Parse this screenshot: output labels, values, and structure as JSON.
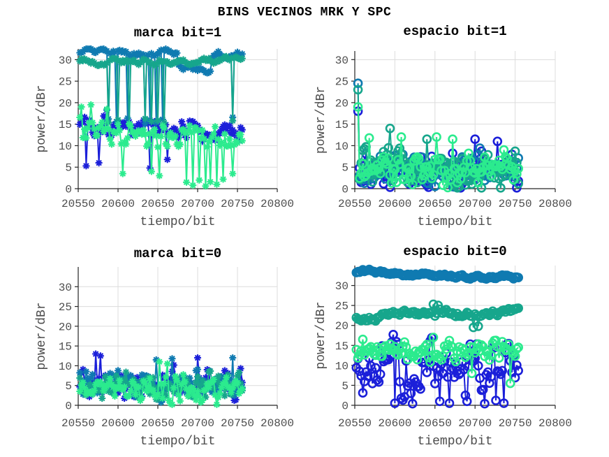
{
  "figure": {
    "title": "BINS VECINOS MRK Y SPC",
    "background": "#ffffff"
  },
  "style": {
    "axis_color": "#262626",
    "grid_color": "#dcdcdc",
    "tick_label_color": "#4d4d4d",
    "axis_label_color": "#4d4d4d",
    "title_color": "#000000"
  },
  "colors": {
    "blue": "#1b1fd9",
    "steel_blue": "#0f7ab1",
    "sea_green": "#16a68c",
    "spring_green": "#2beb8e"
  },
  "chart_data": [
    {
      "id": "marca-bit1",
      "type": "line",
      "title": "marca bit=1",
      "xlabel": "tiempo/bit",
      "ylabel": "power/dBr",
      "xlim": [
        20550,
        20800
      ],
      "ylim": [
        0,
        32.5
      ],
      "xticks": [
        20550,
        20600,
        20650,
        20700,
        20750,
        20800
      ],
      "yticks": [
        0,
        5,
        10,
        15,
        20,
        25,
        30
      ],
      "grid": true,
      "marker": "asterisk",
      "x_start": 20552,
      "x_end": 20756,
      "x_step": 2,
      "series": [
        {
          "name": "blue",
          "color_key": "blue",
          "mode": "noise",
          "seed": 101,
          "base": 15.2,
          "trend": -2.6,
          "amp": 2.6,
          "clamp": [
            4.6,
            18.6
          ],
          "dips": [
            {
              "x": 20560,
              "v": 5.3
            },
            {
              "x": 20576,
              "v": 6.0
            },
            {
              "x": 20640,
              "v": 4.8
            },
            {
              "x": 20662,
              "v": 6.8
            }
          ],
          "spikes": [
            {
              "x": 20586,
              "v": 18.3
            }
          ]
        },
        {
          "name": "steel-blue",
          "color_key": "steel_blue",
          "mode": "walk",
          "seed": 102,
          "base": 31.4,
          "trend": 0,
          "amp": 1.0,
          "band": 1.1,
          "sags": [
            {
              "x0": 20676,
              "x1": 20716,
              "v": 27.7
            }
          ],
          "dips": [
            {
              "x": 20588,
              "v": 16.2
            },
            {
              "x": 20598,
              "v": 15.6
            },
            {
              "x": 20612,
              "v": 16.4
            },
            {
              "x": 20634,
              "v": 15.2
            },
            {
              "x": 20640,
              "v": 16.0
            },
            {
              "x": 20648,
              "v": 15.4
            },
            {
              "x": 20656,
              "v": 16.1
            },
            {
              "x": 20744,
              "v": 16.6
            }
          ]
        },
        {
          "name": "sea-green",
          "color_key": "sea_green",
          "mode": "walk",
          "seed": 103,
          "base": 29.9,
          "trend": -0.4,
          "amp": 1.0,
          "band": 1.2,
          "dips": [
            {
              "x": 20588,
              "v": 15.4
            },
            {
              "x": 20600,
              "v": 16.0
            },
            {
              "x": 20614,
              "v": 15.0
            },
            {
              "x": 20634,
              "v": 16.3
            },
            {
              "x": 20642,
              "v": 15.6
            },
            {
              "x": 20650,
              "v": 15.9
            },
            {
              "x": 20658,
              "v": 15.3
            },
            {
              "x": 20744,
              "v": 15.8
            }
          ]
        },
        {
          "name": "spring-green",
          "color_key": "spring_green",
          "mode": "noise",
          "seed": 104,
          "base": 13.6,
          "trend": -2.0,
          "amp": 3.2,
          "clamp": [
            2.5,
            19.5
          ],
          "spikes": [
            {
              "x": 20554,
              "v": 19.0
            },
            {
              "x": 20566,
              "v": 19.5
            },
            {
              "x": 20586,
              "v": 18.5
            }
          ],
          "dips": [
            {
              "x": 20606,
              "v": 3.5
            },
            {
              "x": 20642,
              "v": 4.0
            },
            {
              "x": 20652,
              "v": 3.0
            },
            {
              "x": 20686,
              "v": 1.5
            },
            {
              "x": 20694,
              "v": 0.8
            },
            {
              "x": 20702,
              "v": 2.0
            },
            {
              "x": 20710,
              "v": 0.6
            },
            {
              "x": 20716,
              "v": 1.6
            },
            {
              "x": 20724,
              "v": 1.0
            },
            {
              "x": 20732,
              "v": 2.2
            },
            {
              "x": 20744,
              "v": 3.5
            }
          ]
        }
      ]
    },
    {
      "id": "espacio-bit1",
      "type": "line",
      "title": "espacio bit=1",
      "xlabel": "tiempo/bit",
      "ylabel": "power/dBr",
      "xlim": [
        20550,
        20800
      ],
      "ylim": [
        0,
        32
      ],
      "xticks": [
        20550,
        20600,
        20650,
        20700,
        20750,
        20800
      ],
      "yticks": [
        0,
        5,
        10,
        15,
        20,
        25,
        30
      ],
      "grid": true,
      "marker": "circle",
      "x_start": 20554,
      "x_end": 20754,
      "x_step": 2,
      "series": [
        {
          "name": "blue",
          "color_key": "blue",
          "mode": "noise",
          "seed": 201,
          "base": 4.2,
          "trend": 0,
          "amp": 4.2,
          "clamp": [
            0.2,
            11.8
          ],
          "spikes": [
            {
              "x": 20554,
              "v": 18.0
            },
            {
              "x": 20700,
              "v": 11.5
            },
            {
              "x": 20728,
              "v": 11.0
            }
          ]
        },
        {
          "name": "steel-blue",
          "color_key": "steel_blue",
          "mode": "noise",
          "seed": 202,
          "base": 4.0,
          "trend": 0,
          "amp": 4.0,
          "clamp": [
            0.2,
            10.6
          ],
          "spikes": [
            {
              "x": 20554,
              "v": 24.5
            }
          ]
        },
        {
          "name": "sea-green",
          "color_key": "sea_green",
          "mode": "noise",
          "seed": 203,
          "base": 4.6,
          "trend": 0,
          "amp": 4.4,
          "clamp": [
            0.2,
            13.8
          ],
          "spikes": [
            {
              "x": 20554,
              "v": 23.0
            },
            {
              "x": 20594,
              "v": 14.0
            },
            {
              "x": 20640,
              "v": 11.5
            }
          ]
        },
        {
          "name": "spring-green",
          "color_key": "spring_green",
          "mode": "noise",
          "seed": 204,
          "base": 4.4,
          "trend": 0,
          "amp": 4.5,
          "clamp": [
            0.1,
            12.0
          ],
          "spikes": [
            {
              "x": 20554,
              "v": 19.0
            },
            {
              "x": 20568,
              "v": 11.8
            },
            {
              "x": 20608,
              "v": 12.0
            },
            {
              "x": 20652,
              "v": 12.0
            },
            {
              "x": 20672,
              "v": 11.5
            },
            {
              "x": 20736,
              "v": 9.0
            }
          ]
        }
      ]
    },
    {
      "id": "marca-bit0",
      "type": "line",
      "title": "marca bit=0",
      "xlabel": "tiempo/bit",
      "ylabel": "power/dBr",
      "xlim": [
        20550,
        20800
      ],
      "ylim": [
        0,
        35
      ],
      "xticks": [
        20550,
        20600,
        20650,
        20700,
        20750,
        20800
      ],
      "yticks": [
        0,
        5,
        10,
        15,
        20,
        25,
        30
      ],
      "grid": true,
      "marker": "asterisk",
      "x_start": 20552,
      "x_end": 20756,
      "x_step": 2,
      "series": [
        {
          "name": "blue",
          "color_key": "blue",
          "mode": "noise",
          "seed": 301,
          "base": 5.6,
          "trend": 0,
          "amp": 4.0,
          "clamp": [
            0.3,
            13.2
          ],
          "spikes": [
            {
              "x": 20572,
              "v": 13.0
            },
            {
              "x": 20578,
              "v": 12.5
            },
            {
              "x": 20700,
              "v": 12.0
            }
          ]
        },
        {
          "name": "steel-blue",
          "color_key": "steel_blue",
          "mode": "noise",
          "seed": 302,
          "base": 5.2,
          "trend": 0,
          "amp": 3.8,
          "clamp": [
            0.3,
            12.2
          ],
          "spikes": [
            {
              "x": 20648,
              "v": 11.5
            },
            {
              "x": 20668,
              "v": 11.8
            },
            {
              "x": 20744,
              "v": 12.0
            }
          ]
        },
        {
          "name": "sea-green",
          "color_key": "sea_green",
          "mode": "noise",
          "seed": 303,
          "base": 4.4,
          "trend": 0,
          "amp": 3.5,
          "clamp": [
            0.2,
            9.6
          ]
        },
        {
          "name": "spring-green",
          "color_key": "spring_green",
          "mode": "noise",
          "seed": 304,
          "base": 4.4,
          "trend": 0,
          "amp": 3.8,
          "clamp": [
            0.2,
            11.2
          ],
          "spikes": [
            {
              "x": 20652,
              "v": 11.0
            },
            {
              "x": 20662,
              "v": 10.5
            }
          ]
        }
      ]
    },
    {
      "id": "espacio-bit0",
      "type": "line",
      "title": "espacio bit=0",
      "xlabel": "tiempo/bit",
      "ylabel": "power/dBr",
      "xlim": [
        20550,
        20800
      ],
      "ylim": [
        0,
        35
      ],
      "xticks": [
        20550,
        20600,
        20650,
        20700,
        20750,
        20800
      ],
      "yticks": [
        0,
        5,
        10,
        15,
        20,
        25,
        30
      ],
      "grid": true,
      "marker": "circle",
      "x_start": 20552,
      "x_end": 20754,
      "x_step": 2,
      "series": [
        {
          "name": "blue",
          "color_key": "blue",
          "mode": "noise",
          "seed": 401,
          "base": 8.6,
          "trend": 0,
          "amp": 8.0,
          "clamp": [
            0.3,
            19.0
          ],
          "dips": [
            {
              "x": 20600,
              "v": 0.5
            },
            {
              "x": 20622,
              "v": 0.4
            },
            {
              "x": 20656,
              "v": 1.0
            },
            {
              "x": 20668,
              "v": 0.5
            },
            {
              "x": 20690,
              "v": 1.0
            },
            {
              "x": 20712,
              "v": 0.4
            },
            {
              "x": 20726,
              "v": 1.2
            },
            {
              "x": 20736,
              "v": 0.5
            }
          ]
        },
        {
          "name": "steel-blue",
          "color_key": "steel_blue",
          "mode": "walk",
          "seed": 402,
          "base": 33.3,
          "trend": -1.5,
          "amp": 0.7,
          "band": 0.9
        },
        {
          "name": "sea-green",
          "color_key": "sea_green",
          "mode": "walk",
          "seed": 403,
          "base": 22.2,
          "trend": 1.2,
          "amp": 1.2,
          "band": 1.8,
          "spikes": [
            {
              "x": 20648,
              "v": 25.3
            },
            {
              "x": 20654,
              "v": 25.0
            }
          ],
          "dips": [
            {
              "x": 20698,
              "v": 19.5
            },
            {
              "x": 20704,
              "v": 19.8
            }
          ]
        },
        {
          "name": "spring-green",
          "color_key": "spring_green",
          "mode": "noise",
          "seed": 404,
          "base": 13.3,
          "trend": 0,
          "amp": 2.6,
          "clamp": [
            8.6,
            17.2
          ],
          "spikes": [
            {
              "x": 20560,
              "v": 16.5
            },
            {
              "x": 20648,
              "v": 17.0
            }
          ],
          "dips": [
            {
              "x": 20696,
              "v": 8.0
            },
            {
              "x": 20744,
              "v": 5.5
            }
          ]
        }
      ]
    }
  ]
}
